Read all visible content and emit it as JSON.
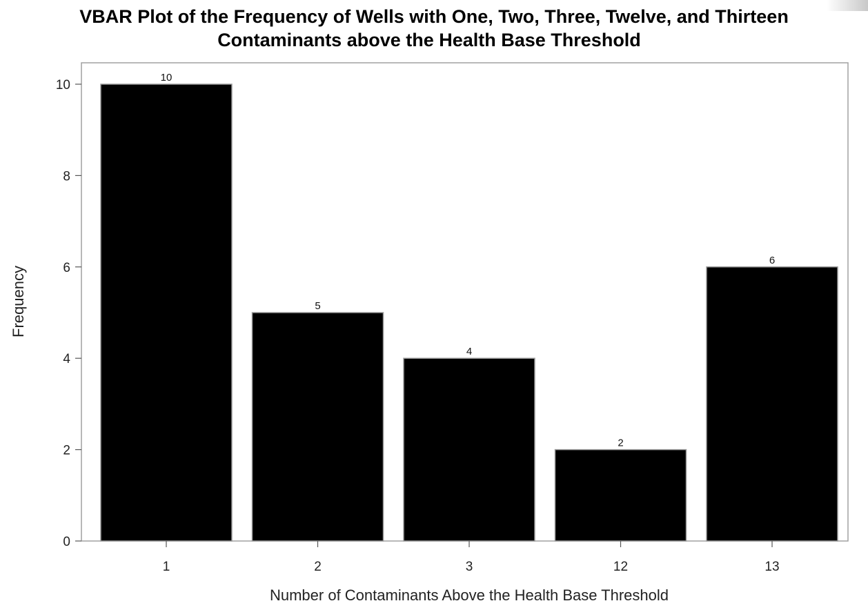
{
  "chart_data": {
    "type": "bar",
    "title": "VBAR Plot of the Frequency of Wells with One, Two, Three, Twelve, and Thirteen",
    "subtitle": "Contaminants above the Health Base Threshold",
    "xlabel": "Number of Contaminants Above the Health Base Threshold",
    "ylabel": "Frequency",
    "categories": [
      "1",
      "2",
      "3",
      "12",
      "13"
    ],
    "values": [
      10,
      5,
      4,
      2,
      6
    ],
    "data_labels": [
      "10",
      "5",
      "4",
      "2",
      "6"
    ],
    "y_ticks": [
      0,
      2,
      4,
      6,
      8,
      10
    ],
    "ylim": [
      0,
      10.5
    ],
    "grid": false,
    "bar_color": "#000000",
    "bar_edge_color": "#9a9a9a",
    "frame_color": "#a0a0a0"
  }
}
